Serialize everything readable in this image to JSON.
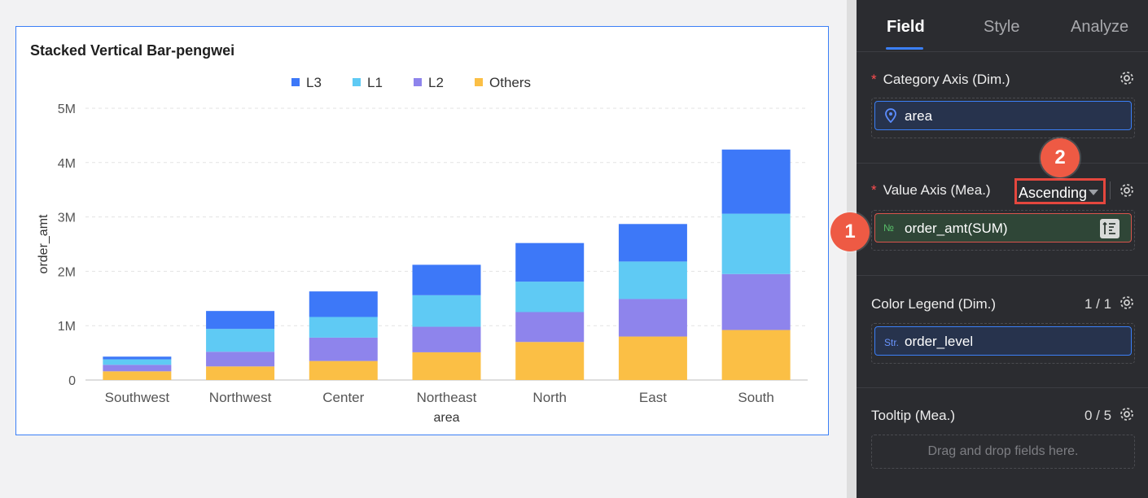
{
  "chart": {
    "title": "Stacked Vertical Bar-pengwei"
  },
  "chart_data": {
    "type": "bar",
    "stacked": true,
    "title": "Stacked Vertical Bar-pengwei",
    "xlabel": "area",
    "ylabel": "order_amt",
    "ylim": [
      0,
      5000000
    ],
    "y_ticks": [
      {
        "value": 0,
        "label": "0"
      },
      {
        "value": 1000000,
        "label": "1M"
      },
      {
        "value": 2000000,
        "label": "2M"
      },
      {
        "value": 3000000,
        "label": "3M"
      },
      {
        "value": 4000000,
        "label": "4M"
      },
      {
        "value": 5000000,
        "label": "5M"
      }
    ],
    "categories": [
      "Southwest",
      "Northwest",
      "Center",
      "Northeast",
      "North",
      "East",
      "South"
    ],
    "legend": [
      "L3",
      "L1",
      "L2",
      "Others"
    ],
    "series": [
      {
        "name": "Others",
        "color": "#fbbf45",
        "values": [
          160000,
          250000,
          350000,
          510000,
          700000,
          800000,
          920000
        ]
      },
      {
        "name": "L2",
        "color": "#8e84ec",
        "values": [
          120000,
          270000,
          430000,
          470000,
          550000,
          690000,
          1030000
        ]
      },
      {
        "name": "L1",
        "color": "#5fcaf4",
        "values": [
          100000,
          420000,
          380000,
          580000,
          560000,
          690000,
          1110000
        ]
      },
      {
        "name": "L3",
        "color": "#3d78f8",
        "values": [
          50000,
          330000,
          470000,
          560000,
          710000,
          690000,
          1180000
        ]
      }
    ]
  },
  "panel": {
    "tabs": [
      {
        "label": "Field"
      },
      {
        "label": "Style"
      },
      {
        "label": "Analyze"
      }
    ],
    "category_axis": {
      "required_mark": "*",
      "label": "Category Axis (Dim.)",
      "field": "area"
    },
    "value_axis": {
      "required_mark": "*",
      "label": "Value Axis (Mea.)",
      "sort": "Ascending",
      "field_type": "№",
      "field": "order_amt(SUM)"
    },
    "color_legend": {
      "label": "Color Legend (Dim.)",
      "count": "1 / 1",
      "field_type": "Str.",
      "field": "order_level"
    },
    "tooltip": {
      "label": "Tooltip (Mea.)",
      "count": "0 / 5",
      "placeholder": "Drag and drop fields here."
    }
  },
  "annotations": {
    "badge1": "1",
    "badge2": "2"
  },
  "colors": {
    "accent": "#3b7ff6",
    "highlight": "#e5473e"
  }
}
